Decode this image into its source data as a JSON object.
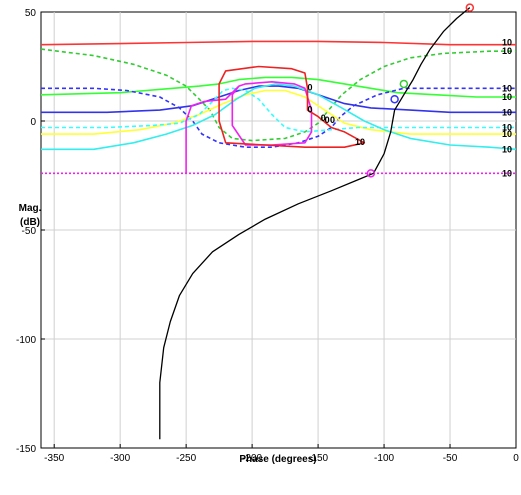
{
  "chart_data": {
    "type": "line",
    "xlabel": "Phase (degrees)",
    "ylabel_line1": "Mag.",
    "ylabel_line2": "(dB)",
    "xlim": [
      -360,
      0
    ],
    "ylim": [
      -150,
      50
    ],
    "xticks": [
      -350,
      -300,
      -250,
      -200,
      -150,
      -100,
      -50,
      0
    ],
    "yticks": [
      50,
      0,
      -50,
      -100,
      -150
    ],
    "grid": true,
    "series": [
      {
        "color": "#ff3333",
        "style": "solid",
        "points": [
          [
            -360,
            35
          ],
          [
            -300,
            35.5
          ],
          [
            -250,
            36
          ],
          [
            -200,
            36.5
          ],
          [
            -150,
            36.5
          ],
          [
            -100,
            36
          ],
          [
            -50,
            35
          ],
          [
            0,
            35
          ]
        ]
      },
      {
        "color": "#33cc33",
        "style": "dashed",
        "points": [
          [
            -360,
            33
          ],
          [
            -320,
            30
          ],
          [
            -290,
            26
          ],
          [
            -265,
            21
          ],
          [
            -250,
            16
          ],
          [
            -240,
            10
          ],
          [
            -232,
            5
          ],
          [
            -225,
            -3
          ],
          [
            -215,
            -8
          ],
          [
            -200,
            -9
          ],
          [
            -175,
            -8
          ],
          [
            -160,
            -5
          ],
          [
            -150,
            -1
          ],
          [
            -142,
            5
          ],
          [
            -132,
            12
          ],
          [
            -118,
            19
          ],
          [
            -100,
            25
          ],
          [
            -80,
            29
          ],
          [
            -55,
            31
          ],
          [
            -20,
            32
          ],
          [
            0,
            32
          ]
        ]
      },
      {
        "color": "#33ff33",
        "style": "solid",
        "points": [
          [
            -360,
            12
          ],
          [
            -300,
            13
          ],
          [
            -260,
            15
          ],
          [
            -240,
            16
          ],
          [
            -225,
            17
          ],
          [
            -210,
            19
          ],
          [
            -190,
            20
          ],
          [
            -170,
            20
          ],
          [
            -150,
            19
          ],
          [
            -130,
            17
          ],
          [
            -110,
            15
          ],
          [
            -90,
            13
          ],
          [
            -60,
            12
          ],
          [
            -30,
            11
          ],
          [
            0,
            11
          ]
        ]
      },
      {
        "color": "#3333ff",
        "style": "dashed",
        "points": [
          [
            -360,
            15
          ],
          [
            -320,
            15
          ],
          [
            -295,
            14
          ],
          [
            -270,
            11
          ],
          [
            -255,
            6
          ],
          [
            -245,
            0
          ],
          [
            -238,
            -6
          ],
          [
            -225,
            -10
          ],
          [
            -205,
            -12
          ],
          [
            -185,
            -12
          ],
          [
            -165,
            -10
          ],
          [
            -150,
            -7
          ],
          [
            -140,
            -3
          ],
          [
            -133,
            2
          ],
          [
            -123,
            7
          ],
          [
            -105,
            12
          ],
          [
            -85,
            15
          ],
          [
            -55,
            15
          ],
          [
            -25,
            15
          ],
          [
            0,
            15
          ]
        ]
      },
      {
        "color": "#3333ee",
        "style": "solid",
        "points": [
          [
            -360,
            4
          ],
          [
            -310,
            4
          ],
          [
            -270,
            5
          ],
          [
            -245,
            7
          ],
          [
            -225,
            11
          ],
          [
            -210,
            14
          ],
          [
            -195,
            16
          ],
          [
            -180,
            16
          ],
          [
            -165,
            15
          ],
          [
            -150,
            12
          ],
          [
            -130,
            8
          ],
          [
            -110,
            6
          ],
          [
            -80,
            5
          ],
          [
            -50,
            4
          ],
          [
            0,
            4
          ]
        ]
      },
      {
        "color": "#ffff33",
        "style": "solid",
        "points": [
          [
            -360,
            -6
          ],
          [
            -320,
            -6
          ],
          [
            -285,
            -4
          ],
          [
            -260,
            -1
          ],
          [
            -240,
            3
          ],
          [
            -222,
            8
          ],
          [
            -205,
            12
          ],
          [
            -190,
            14
          ],
          [
            -175,
            14
          ],
          [
            -160,
            11
          ],
          [
            -145,
            5
          ],
          [
            -130,
            -1
          ],
          [
            -110,
            -4
          ],
          [
            -80,
            -6
          ],
          [
            -40,
            -6
          ],
          [
            0,
            -6
          ]
        ]
      },
      {
        "color": "#33ffff",
        "style": "dashed",
        "points": [
          [
            -360,
            -3
          ],
          [
            -310,
            -3
          ],
          [
            -275,
            -2
          ],
          [
            -255,
            -1
          ],
          [
            -240,
            3
          ],
          [
            -230,
            9
          ],
          [
            -222,
            14
          ],
          [
            -215,
            15
          ],
          [
            -205,
            14
          ],
          [
            -195,
            10
          ],
          [
            -185,
            3
          ],
          [
            -175,
            -3
          ],
          [
            -160,
            -5
          ],
          [
            -140,
            -4
          ],
          [
            -120,
            -3
          ],
          [
            -80,
            -3
          ],
          [
            -40,
            -3
          ],
          [
            0,
            -3
          ]
        ]
      },
      {
        "color": "#33eeee",
        "style": "solid",
        "points": [
          [
            -360,
            -13
          ],
          [
            -320,
            -13
          ],
          [
            -290,
            -10
          ],
          [
            -265,
            -6
          ],
          [
            -245,
            -2
          ],
          [
            -228,
            3
          ],
          [
            -212,
            10
          ],
          [
            -198,
            15
          ],
          [
            -182,
            17
          ],
          [
            -168,
            16
          ],
          [
            -150,
            12
          ],
          [
            -132,
            6
          ],
          [
            -115,
            0
          ],
          [
            -100,
            -4
          ],
          [
            -80,
            -8
          ],
          [
            -50,
            -11
          ],
          [
            -20,
            -12
          ],
          [
            0,
            -13
          ]
        ]
      },
      {
        "color": "#ee22ee",
        "style": "dotted",
        "points": [
          [
            -360,
            -24
          ],
          [
            -300,
            -24
          ],
          [
            -200,
            -24
          ],
          [
            -100,
            -24
          ],
          [
            0,
            -24
          ]
        ]
      },
      {
        "color": "#ee22ee",
        "style": "solid",
        "points": [
          [
            -250,
            -24
          ],
          [
            -250,
            0
          ],
          [
            -246,
            7
          ],
          [
            -236,
            9
          ],
          [
            -220,
            10
          ],
          [
            -210,
            16
          ],
          [
            -205,
            17
          ],
          [
            -185,
            18
          ],
          [
            -168,
            17
          ],
          [
            -160,
            15
          ],
          [
            -155,
            5
          ],
          [
            -155,
            -5
          ],
          [
            -160,
            -10
          ],
          [
            -185,
            -11
          ],
          [
            -205,
            -11
          ],
          [
            -215,
            -2
          ],
          [
            -215,
            12
          ],
          [
            -210,
            16
          ]
        ]
      },
      {
        "color": "#ee2222",
        "style": "solid",
        "points": [
          [
            -225,
            10
          ],
          [
            -225,
            17
          ],
          [
            -220,
            23
          ],
          [
            -195,
            25
          ],
          [
            -170,
            24
          ],
          [
            -160,
            22
          ],
          [
            -158,
            15
          ],
          [
            -158,
            5
          ],
          [
            -150,
            2
          ],
          [
            -140,
            -3
          ],
          [
            -130,
            -5
          ],
          [
            -115,
            -10
          ],
          [
            -130,
            -12
          ],
          [
            -160,
            -12
          ],
          [
            -190,
            -11
          ],
          [
            -220,
            -10
          ],
          [
            -225,
            0
          ],
          [
            -225,
            10
          ]
        ]
      },
      {
        "color": "#000000",
        "style": "solid",
        "points": [
          [
            -270,
            -146
          ],
          [
            -270,
            -120
          ],
          [
            -267,
            -104
          ],
          [
            -262,
            -92
          ],
          [
            -255,
            -80
          ],
          [
            -245,
            -70
          ],
          [
            -230,
            -60
          ],
          [
            -210,
            -52
          ],
          [
            -190,
            -45
          ],
          [
            -165,
            -38
          ],
          [
            -140,
            -32
          ],
          [
            -120,
            -27
          ],
          [
            -108,
            -24
          ],
          [
            -100,
            -15
          ],
          [
            -95,
            -5
          ],
          [
            -92,
            5
          ],
          [
            -85,
            12
          ],
          [
            -78,
            19
          ],
          [
            -72,
            26
          ],
          [
            -65,
            33
          ],
          [
            -55,
            41
          ],
          [
            -45,
            47
          ],
          [
            -35,
            52
          ]
        ]
      }
    ],
    "markers": [
      {
        "x": -35,
        "y": 52,
        "color": "#ff3333"
      },
      {
        "x": -85,
        "y": 17,
        "color": "#33cc33"
      },
      {
        "x": -92,
        "y": 10,
        "color": "#3333ff"
      },
      {
        "x": -110,
        "y": -24,
        "color": "#ee22ee"
      }
    ],
    "right_labels": [
      {
        "text": "10",
        "y": 36
      },
      {
        "text": "10",
        "y": 32
      },
      {
        "text": "10",
        "y": 15
      },
      {
        "text": "10",
        "y": 11
      },
      {
        "text": "10",
        "y": 4
      },
      {
        "text": "10",
        "y": -3
      },
      {
        "text": "10",
        "y": -6
      },
      {
        "text": "10",
        "y": -13
      },
      {
        "text": "10",
        "y": -24
      }
    ],
    "inner_labels": [
      {
        "text": "0",
        "x": -158,
        "y": 14
      },
      {
        "text": "0",
        "x": -158,
        "y": 4
      },
      {
        "text": "0",
        "x": -148,
        "y": 0
      },
      {
        "text": "0",
        "x": -145,
        "y": -1
      },
      {
        "text": "0",
        "x": -141,
        "y": -1
      },
      {
        "text": "10",
        "x": -122,
        "y": -11
      }
    ]
  }
}
